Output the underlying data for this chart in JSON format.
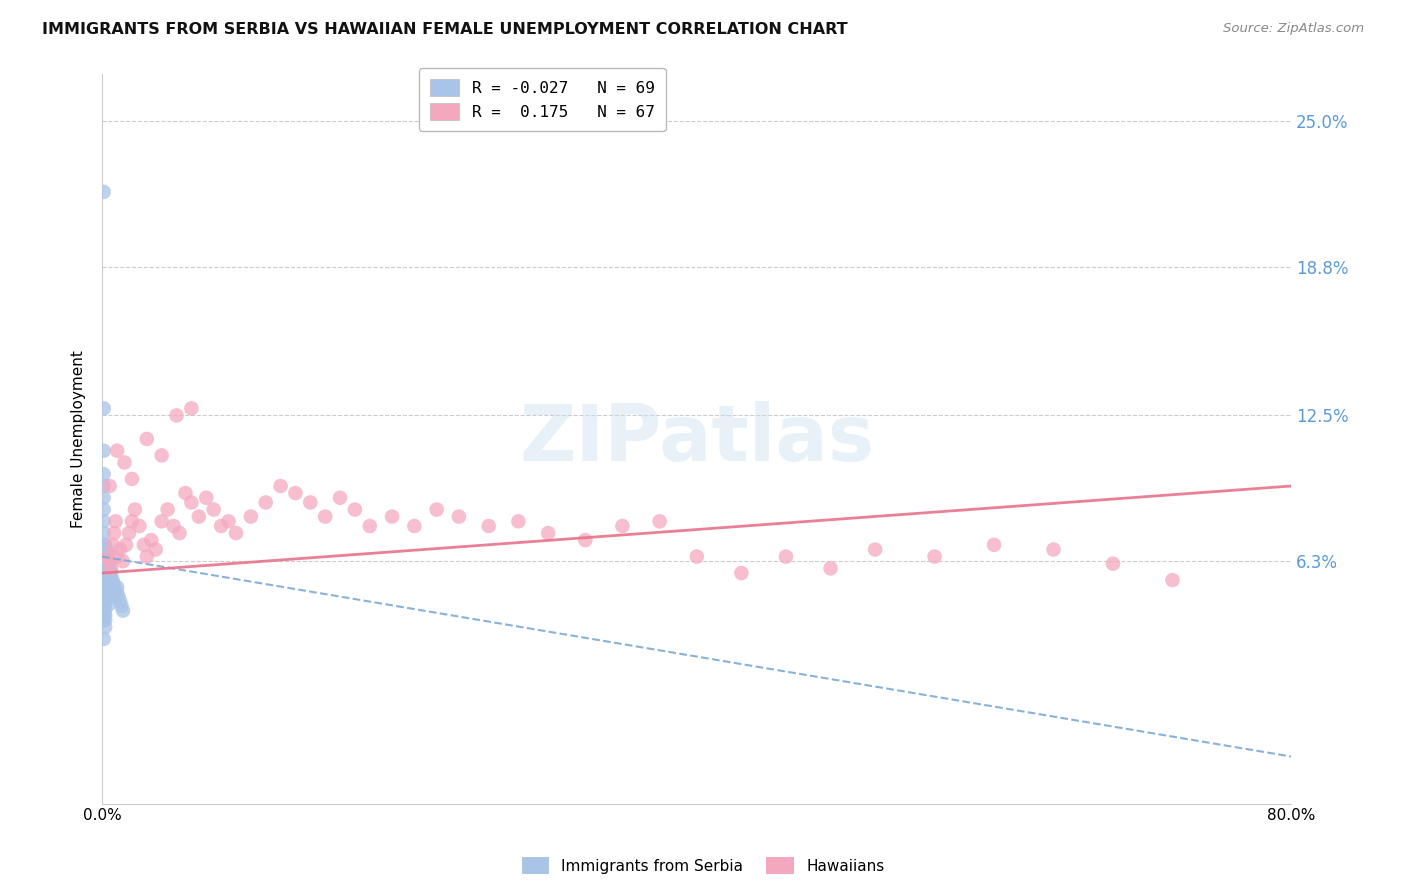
{
  "title": "IMMIGRANTS FROM SERBIA VS HAWAIIAN FEMALE UNEMPLOYMENT CORRELATION CHART",
  "source": "Source: ZipAtlas.com",
  "ylabel": "Female Unemployment",
  "ytick_labels": [
    "6.3%",
    "12.5%",
    "18.8%",
    "25.0%"
  ],
  "ytick_values": [
    0.063,
    0.125,
    0.188,
    0.25
  ],
  "xmin": 0.0,
  "xmax": 0.8,
  "ymin": -0.04,
  "ymax": 0.27,
  "color_serbia": "#aac4e8",
  "color_hawaiians": "#f4a8c0",
  "color_serbia_line": "#7baad4",
  "color_hawaiians_line": "#e8728a",
  "color_yticks": "#5b9bd5",
  "serbia_x": [
    0.001,
    0.001,
    0.001,
    0.001,
    0.001,
    0.001,
    0.001,
    0.001,
    0.001,
    0.001,
    0.001,
    0.001,
    0.001,
    0.001,
    0.001,
    0.001,
    0.001,
    0.001,
    0.001,
    0.001,
    0.001,
    0.001,
    0.001,
    0.002,
    0.002,
    0.002,
    0.002,
    0.002,
    0.002,
    0.002,
    0.002,
    0.002,
    0.002,
    0.002,
    0.002,
    0.002,
    0.002,
    0.002,
    0.003,
    0.003,
    0.003,
    0.003,
    0.003,
    0.003,
    0.004,
    0.004,
    0.004,
    0.004,
    0.005,
    0.005,
    0.005,
    0.005,
    0.005,
    0.006,
    0.006,
    0.006,
    0.007,
    0.007,
    0.007,
    0.008,
    0.008,
    0.009,
    0.01,
    0.01,
    0.011,
    0.012,
    0.013,
    0.014,
    0.001
  ],
  "serbia_y": [
    0.22,
    0.128,
    0.11,
    0.1,
    0.095,
    0.09,
    0.085,
    0.08,
    0.075,
    0.07,
    0.068,
    0.065,
    0.063,
    0.06,
    0.058,
    0.055,
    0.053,
    0.05,
    0.048,
    0.045,
    0.042,
    0.04,
    0.038,
    0.07,
    0.068,
    0.065,
    0.063,
    0.06,
    0.058,
    0.055,
    0.052,
    0.05,
    0.048,
    0.045,
    0.042,
    0.04,
    0.038,
    0.035,
    0.068,
    0.065,
    0.063,
    0.06,
    0.055,
    0.05,
    0.063,
    0.06,
    0.055,
    0.05,
    0.06,
    0.058,
    0.055,
    0.05,
    0.045,
    0.058,
    0.055,
    0.05,
    0.055,
    0.052,
    0.048,
    0.053,
    0.05,
    0.048,
    0.052,
    0.05,
    0.048,
    0.046,
    0.044,
    0.042,
    0.03
  ],
  "hawaiians_x": [
    0.004,
    0.005,
    0.006,
    0.007,
    0.008,
    0.009,
    0.01,
    0.012,
    0.014,
    0.016,
    0.018,
    0.02,
    0.022,
    0.025,
    0.028,
    0.03,
    0.033,
    0.036,
    0.04,
    0.044,
    0.048,
    0.052,
    0.056,
    0.06,
    0.065,
    0.07,
    0.075,
    0.08,
    0.085,
    0.09,
    0.1,
    0.11,
    0.12,
    0.13,
    0.14,
    0.15,
    0.16,
    0.17,
    0.18,
    0.195,
    0.21,
    0.225,
    0.24,
    0.26,
    0.28,
    0.3,
    0.325,
    0.35,
    0.375,
    0.4,
    0.43,
    0.46,
    0.49,
    0.52,
    0.56,
    0.6,
    0.64,
    0.68,
    0.005,
    0.01,
    0.015,
    0.02,
    0.03,
    0.04,
    0.05,
    0.06,
    0.72
  ],
  "hawaiians_y": [
    0.065,
    0.063,
    0.06,
    0.07,
    0.075,
    0.08,
    0.065,
    0.068,
    0.063,
    0.07,
    0.075,
    0.08,
    0.085,
    0.078,
    0.07,
    0.065,
    0.072,
    0.068,
    0.08,
    0.085,
    0.078,
    0.075,
    0.092,
    0.088,
    0.082,
    0.09,
    0.085,
    0.078,
    0.08,
    0.075,
    0.082,
    0.088,
    0.095,
    0.092,
    0.088,
    0.082,
    0.09,
    0.085,
    0.078,
    0.082,
    0.078,
    0.085,
    0.082,
    0.078,
    0.08,
    0.075,
    0.072,
    0.078,
    0.08,
    0.065,
    0.058,
    0.065,
    0.06,
    0.068,
    0.065,
    0.07,
    0.068,
    0.062,
    0.095,
    0.11,
    0.105,
    0.098,
    0.115,
    0.108,
    0.125,
    0.128,
    0.055
  ]
}
